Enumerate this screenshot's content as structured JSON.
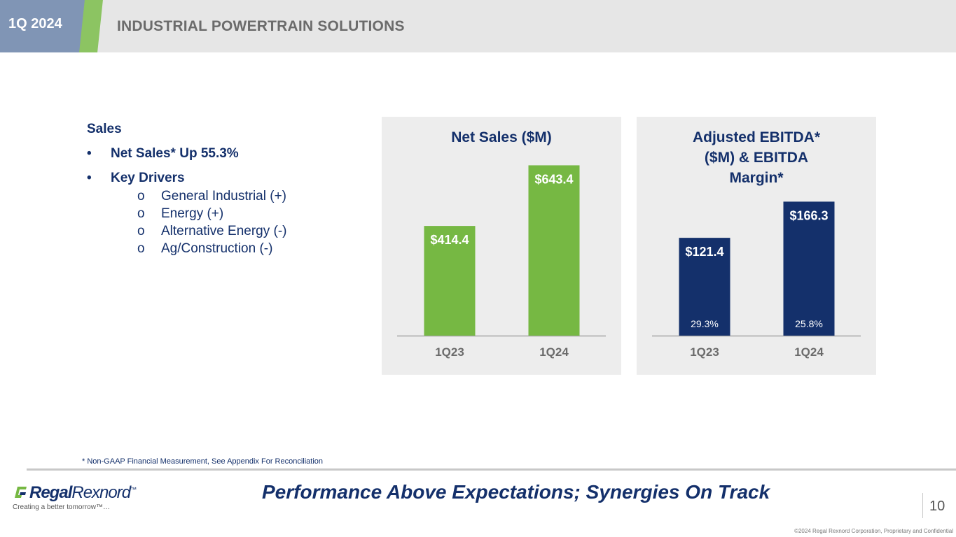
{
  "header": {
    "quarter": "1Q 2024",
    "title": "INDUSTRIAL POWERTRAIN SOLUTIONS"
  },
  "sales": {
    "heading": "Sales",
    "bullet_mark": "•",
    "sub_mark": "o",
    "bullets": [
      {
        "text": "Net Sales* Up 55.3%"
      },
      {
        "text": "Key Drivers"
      }
    ],
    "drivers": [
      "General Industrial (+)",
      "Energy (+)",
      "Alternative Energy (-)",
      "Ag/Construction (-)"
    ]
  },
  "chart_data": [
    {
      "type": "bar",
      "title": "Net Sales ($M)",
      "categories": [
        "1Q23",
        "1Q24"
      ],
      "values": [
        414.4,
        643.4
      ],
      "data_labels": [
        "$414.4",
        "$643.4"
      ],
      "color": "#76b843",
      "xlabel": "",
      "ylabel": "",
      "ylim": [
        0,
        700
      ]
    },
    {
      "type": "bar",
      "title_lines": [
        "Adjusted EBITDA*",
        "($M) & EBITDA",
        "Margin*"
      ],
      "categories": [
        "1Q23",
        "1Q24"
      ],
      "values": [
        121.4,
        166.3
      ],
      "data_labels": [
        "$121.4",
        "$166.3"
      ],
      "margins": [
        "29.3%",
        "25.8%"
      ],
      "color": "#14306b",
      "xlabel": "",
      "ylabel": "",
      "ylim": [
        0,
        230
      ]
    }
  ],
  "footer": {
    "footnote": "* Non-GAAP Financial Measurement, See Appendix For Reconciliation",
    "logo_bold": "Regal",
    "logo_rest": "Rexnord",
    "logo_tm": "™",
    "tagline": "Creating a better tomorrow™…",
    "headline": "Performance Above Expectations; Synergies On Track",
    "page_number": "10",
    "copyright": "©2024 Regal Rexnord Corporation, Proprietary and Confidential"
  }
}
